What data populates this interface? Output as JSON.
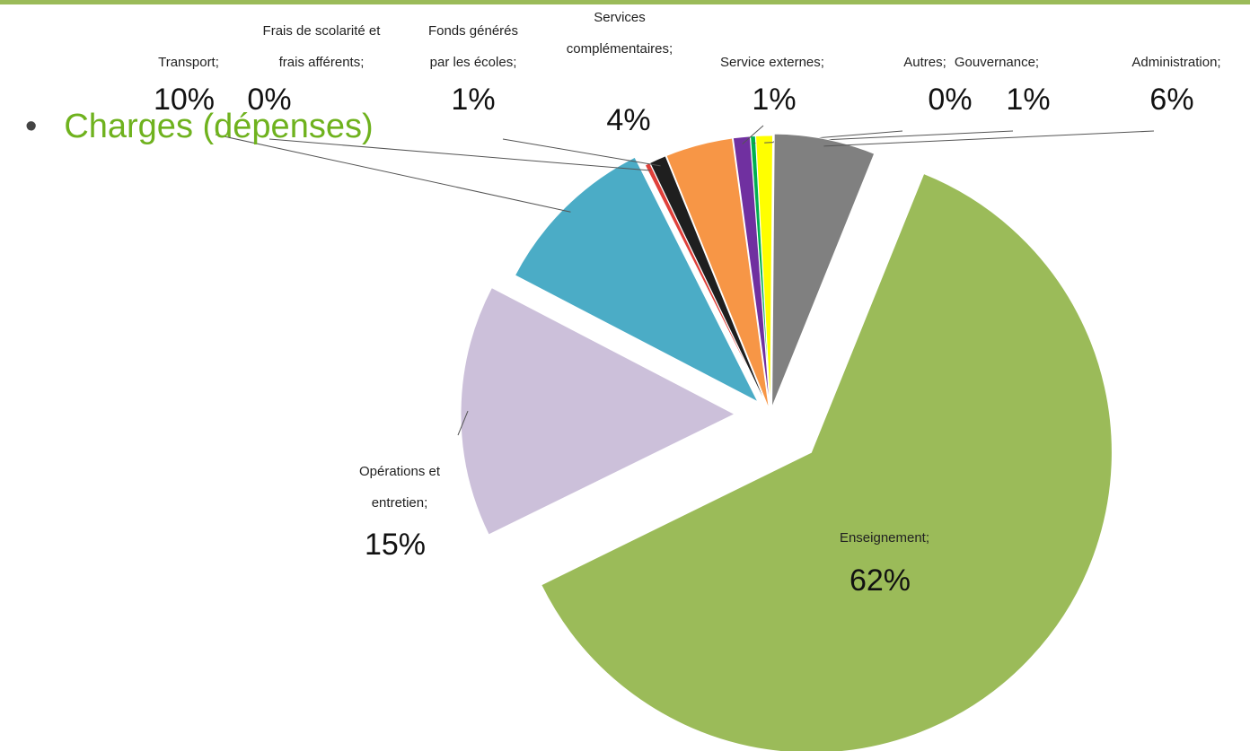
{
  "chart_data": {
    "type": "pie",
    "title": "Charges (dépenses)",
    "categories": [
      "Autres;",
      "Gouvernance;",
      "Administration;",
      "Enseignement;",
      "Opérations et entretien;",
      "Transport;",
      "Frais de scolarité et frais afférents;",
      "Fonds générés par les écoles;",
      "Services complémentaires;",
      "Service externes;"
    ],
    "values": [
      0.3,
      1,
      6,
      62,
      15,
      10,
      0.3,
      1,
      4,
      1
    ],
    "value_labels": [
      "0%",
      "1%",
      "6%",
      "62%",
      "15%",
      "10%",
      "0%",
      "1%",
      "4%",
      "1%"
    ],
    "colors": [
      "#00b050",
      "#ffff00",
      "#808080",
      "#9bbb59",
      "#ccc0da",
      "#4bacc6",
      "#e0403a",
      "#1f1f1f",
      "#f79646",
      "#7030a0"
    ]
  }
}
